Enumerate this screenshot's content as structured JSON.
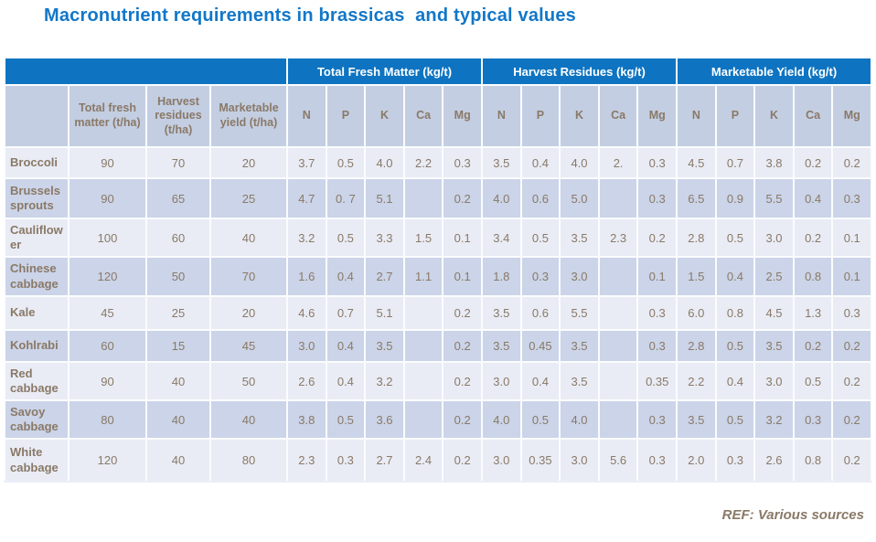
{
  "title": "Macronutrient requirements in brassicas  and typical values",
  "footer": {
    "ref": "REF: Various sources"
  },
  "colors": {
    "accent_blue": "#0e74c1",
    "title_blue": "#1277c8",
    "subheader_bg": "#c3cee2",
    "row_dark": "#cbd4e8",
    "row_light": "#e9ecf5",
    "text_brown": "#8a7967"
  },
  "table": {
    "group_headers": [
      {
        "label": "",
        "span": 4
      },
      {
        "label": "Total Fresh Matter (kg/t)",
        "span": 5
      },
      {
        "label": "Harvest Residues (kg/t)",
        "span": 5
      },
      {
        "label": "Marketable Yield (kg/t)",
        "span": 5
      }
    ],
    "sub_headers": [
      "",
      "Total fresh matter (t/ha)",
      "Harvest residues (t/ha)",
      "Marketable yield (t/ha)",
      "N",
      "P",
      "K",
      "Ca",
      "Mg",
      "N",
      "P",
      "K",
      "Ca",
      "Mg",
      "N",
      "P",
      "K",
      "Ca",
      "Mg"
    ],
    "rows": [
      {
        "label": "Broccoli",
        "values": [
          "90",
          "70",
          "20",
          "3.7",
          "0.5",
          "4.0",
          "2.2",
          "0.3",
          "3.5",
          "0.4",
          "4.0",
          "2.",
          "0.3",
          "4.5",
          "0.7",
          "3.8",
          "0.2",
          "0.2"
        ]
      },
      {
        "label": "Brussels sprouts",
        "values": [
          "90",
          "65",
          "25",
          "4.7",
          "0. 7",
          "5.1",
          "",
          "0.2",
          "4.0",
          "0.6",
          "5.0",
          "",
          "0.3",
          "6.5",
          "0.9",
          "5.5",
          "0.4",
          "0.3"
        ]
      },
      {
        "label": "Cauliflower",
        "values": [
          "100",
          "60",
          "40",
          "3.2",
          "0.5",
          "3.3",
          "1.5",
          "0.1",
          "3.4",
          "0.5",
          "3.5",
          "2.3",
          "0.2",
          "2.8",
          "0.5",
          "3.0",
          "0.2",
          "0.1"
        ]
      },
      {
        "label": "Chinese cabbage",
        "values": [
          "120",
          "50",
          "70",
          "1.6",
          "0.4",
          "2.7",
          "1.1",
          "0.1",
          "1.8",
          "0.3",
          "3.0",
          "",
          "0.1",
          "1.5",
          "0.4",
          "2.5",
          "0.8",
          "0.1"
        ]
      },
      {
        "label": "Kale",
        "values": [
          "45",
          "25",
          "20",
          "4.6",
          "0.7",
          "5.1",
          "",
          "0.2",
          "3.5",
          "0.6",
          "5.5",
          "",
          "0.3",
          "6.0",
          "0.8",
          "4.5",
          "1.3",
          "0.3"
        ]
      },
      {
        "label": "Kohlrabi",
        "values": [
          "60",
          "15",
          "45",
          "3.0",
          "0.4",
          "3.5",
          "",
          "0.2",
          "3.5",
          "0.45",
          "3.5",
          "",
          "0.3",
          "2.8",
          "0.5",
          "3.5",
          "0.2",
          "0.2"
        ]
      },
      {
        "label": "Red cabbage",
        "values": [
          "90",
          "40",
          "50",
          "2.6",
          "0.4",
          "3.2",
          "",
          "0.2",
          "3.0",
          "0.4",
          "3.5",
          "",
          "0.35",
          "2.2",
          "0.4",
          "3.0",
          "0.5",
          "0.2"
        ]
      },
      {
        "label": "Savoy cabbage",
        "values": [
          "80",
          "40",
          "40",
          "3.8",
          "0.5",
          "3.6",
          "",
          "0.2",
          "4.0",
          "0.5",
          "4.0",
          "",
          "0.3",
          "3.5",
          "0.5",
          "3.2",
          "0.3",
          "0.2"
        ]
      },
      {
        "label": "White cabbage",
        "values": [
          "120",
          "40",
          "80",
          "2.3",
          "0.3",
          "2.7",
          "2.4",
          "0.2",
          "3.0",
          "0.35",
          "3.0",
          "5.6",
          "0.3",
          "2.0",
          "0.3",
          "2.6",
          "0.8",
          "0.2"
        ]
      }
    ]
  }
}
